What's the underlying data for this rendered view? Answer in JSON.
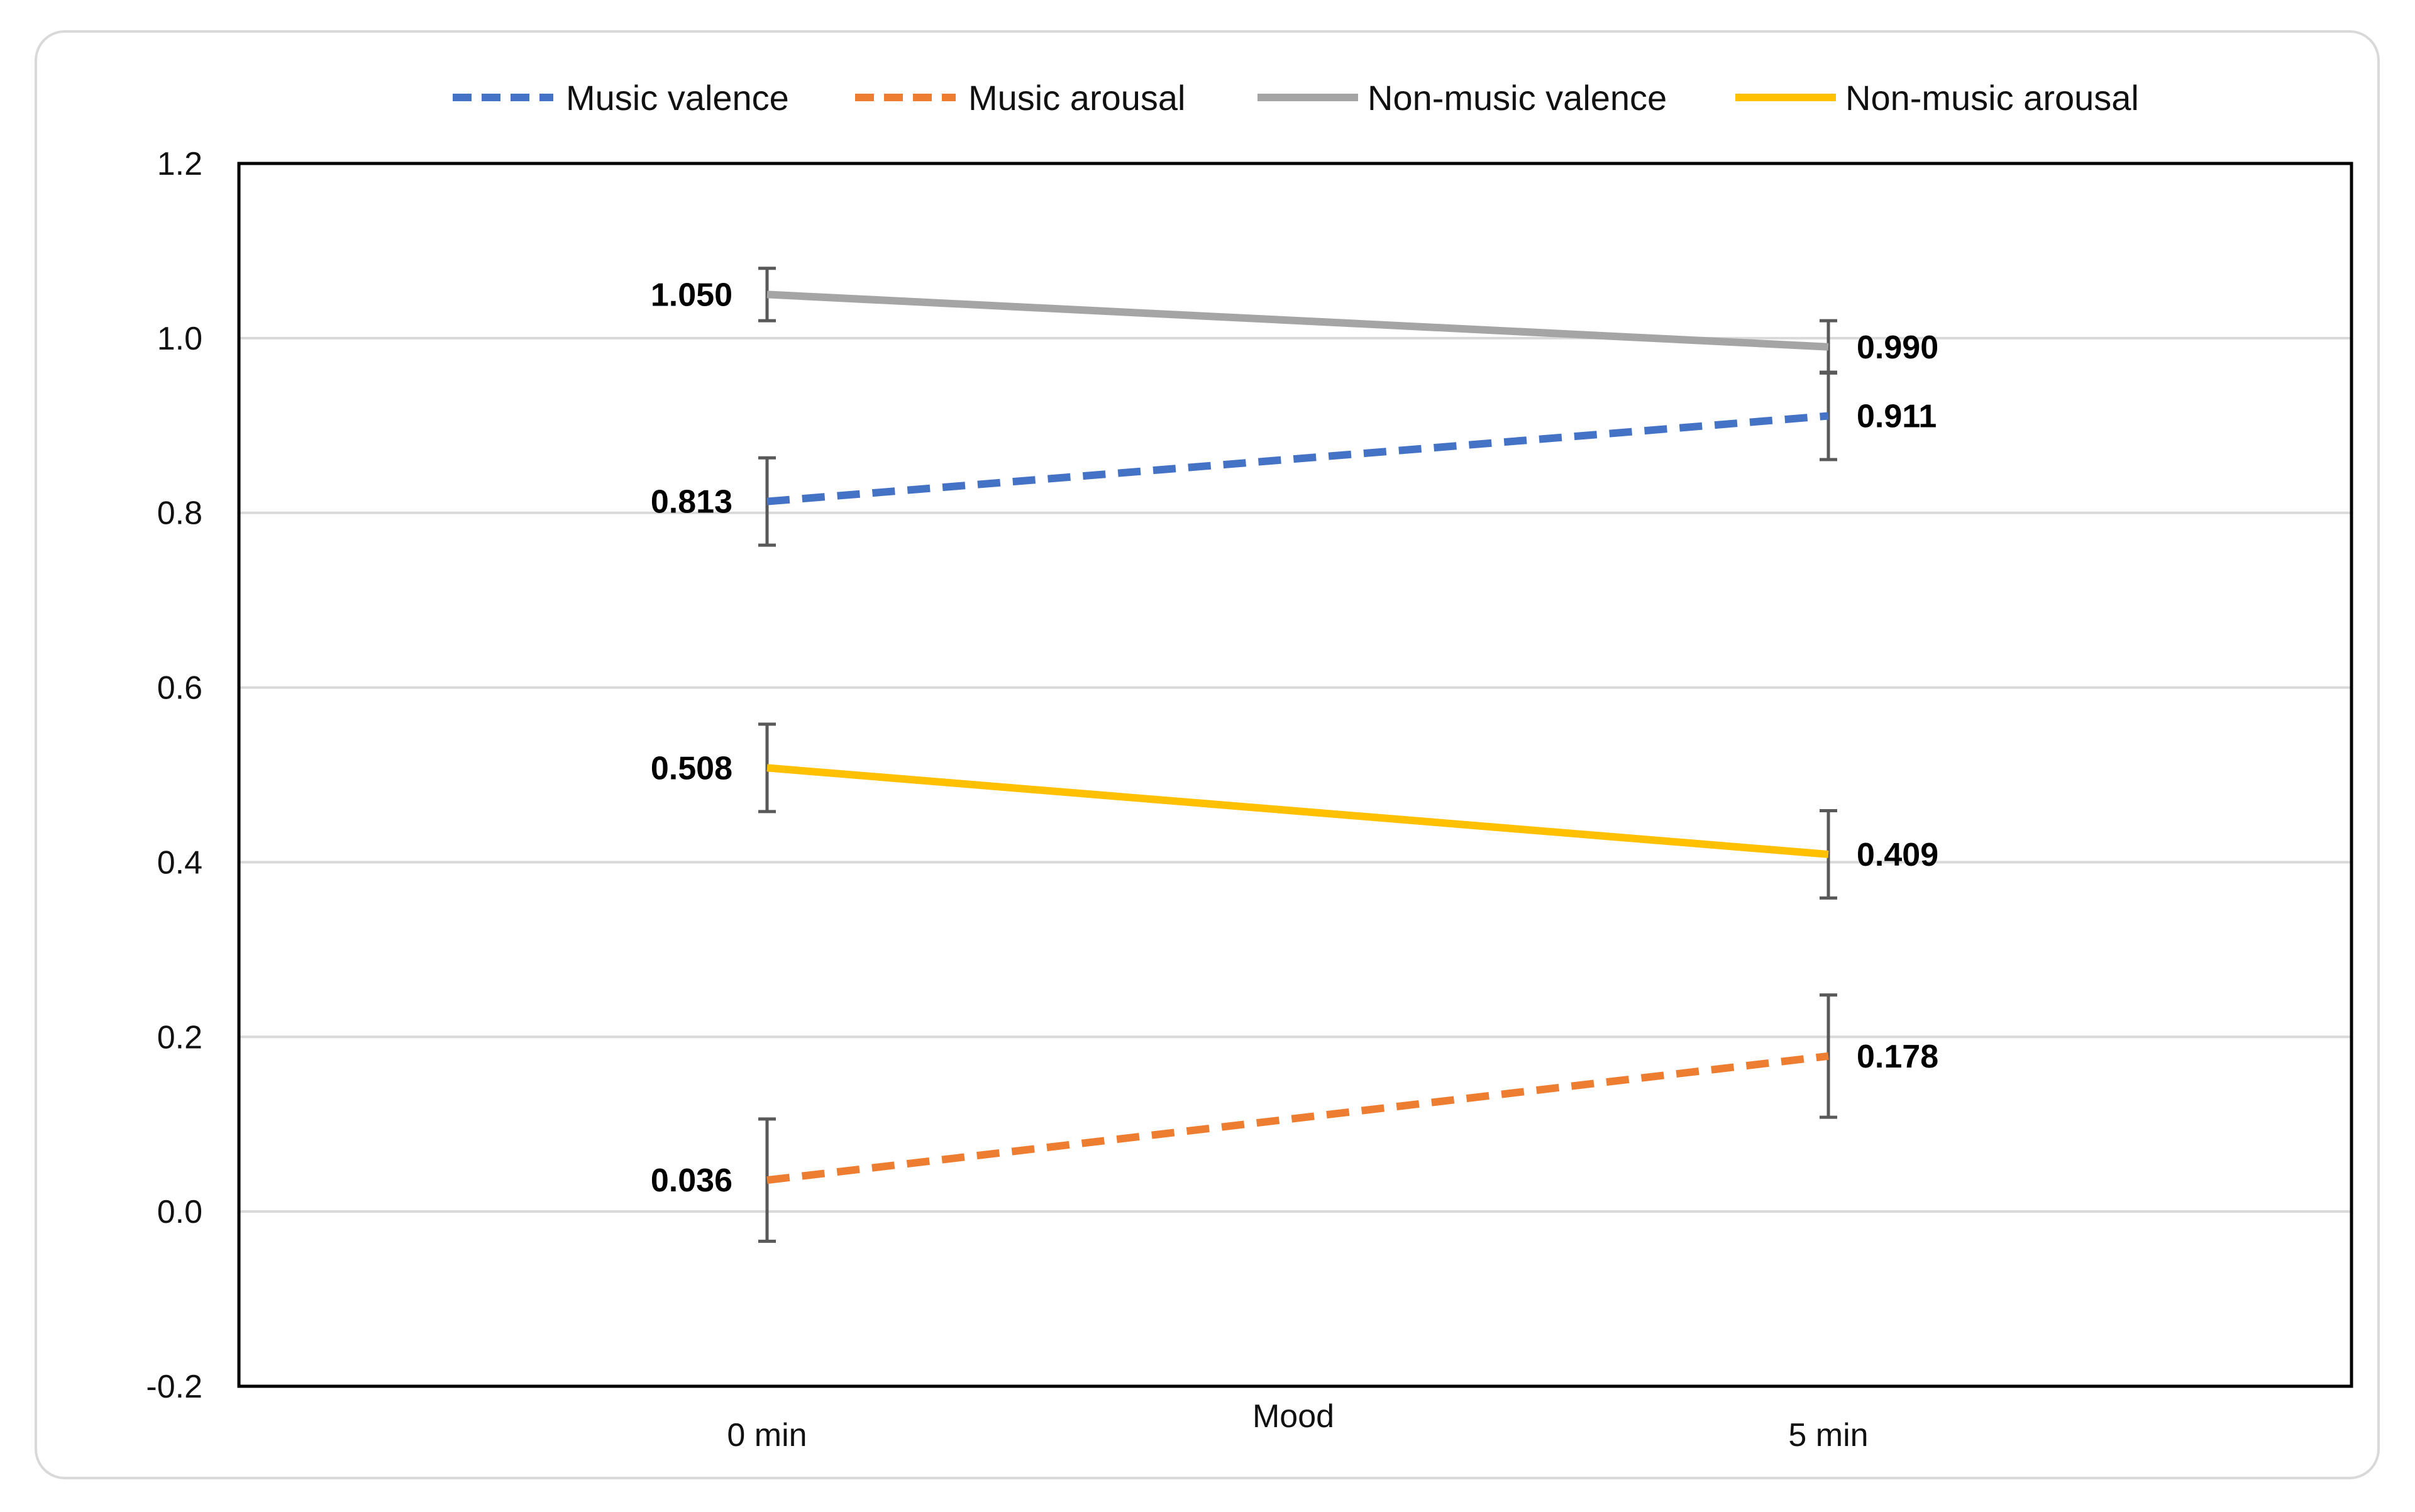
{
  "chart_data": {
    "type": "line",
    "title": "",
    "xlabel": "Mood",
    "ylabel": "",
    "categories": [
      "0 min",
      "5 min"
    ],
    "ylim": [
      -0.2,
      1.2
    ],
    "yticks": [
      -0.2,
      0.0,
      0.2,
      0.4,
      0.6,
      0.8,
      1.0,
      1.2
    ],
    "ytick_labels": [
      "-0.2",
      "0.0",
      "0.2",
      "0.4",
      "0.6",
      "0.8",
      "1.0",
      "1.2"
    ],
    "grid": true,
    "legend_position": "top",
    "series": [
      {
        "name": "Music valence",
        "values": [
          0.813,
          0.911
        ],
        "value_labels": [
          "0.813",
          "0.911"
        ],
        "error": [
          0.05,
          0.05
        ],
        "color": "#4472C4",
        "dashed": true
      },
      {
        "name": "Music arousal",
        "values": [
          0.036,
          0.178
        ],
        "value_labels": [
          "0.036",
          "0.178"
        ],
        "error": [
          0.07,
          0.07
        ],
        "color": "#ED7D31",
        "dashed": true
      },
      {
        "name": "Non-music valence",
        "values": [
          1.05,
          0.99
        ],
        "value_labels": [
          "1.050",
          "0.990"
        ],
        "error": [
          0.03,
          0.03
        ],
        "color": "#A5A5A5",
        "dashed": false
      },
      {
        "name": "Non-music arousal",
        "values": [
          0.508,
          0.409
        ],
        "value_labels": [
          "0.508",
          "0.409"
        ],
        "error": [
          0.05,
          0.05
        ],
        "color": "#FFC000",
        "dashed": false
      }
    ]
  }
}
